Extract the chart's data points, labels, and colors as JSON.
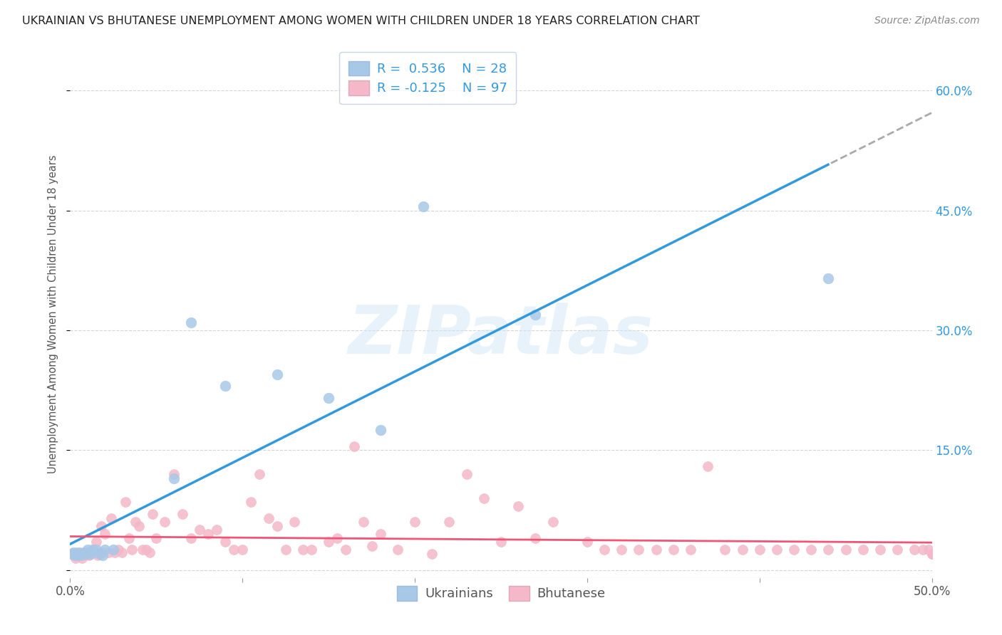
{
  "title": "UKRAINIAN VS BHUTANESE UNEMPLOYMENT AMONG WOMEN WITH CHILDREN UNDER 18 YEARS CORRELATION CHART",
  "source": "Source: ZipAtlas.com",
  "ylabel": "Unemployment Among Women with Children Under 18 years",
  "xlim": [
    0.0,
    0.5
  ],
  "ylim": [
    -0.01,
    0.65
  ],
  "background_color": "#ffffff",
  "grid_color": "#d0d0d0",
  "ukrainian_color": "#a8c8e8",
  "bhutanese_color": "#f4b8c8",
  "line_blue": "#3399dd",
  "line_pink": "#ee5577",
  "line_dashed_color": "#aaaaaa",
  "R_ukrainian": 0.536,
  "N_ukrainian": 28,
  "R_bhutanese": -0.125,
  "N_bhutanese": 97,
  "legend_label_ukrainian": "Ukrainians",
  "legend_label_bhutanese": "Bhutanese",
  "watermark": "ZIPatlas",
  "ukrainian_x": [
    0.001,
    0.002,
    0.003,
    0.004,
    0.005,
    0.006,
    0.007,
    0.008,
    0.009,
    0.01,
    0.011,
    0.012,
    0.013,
    0.015,
    0.017,
    0.018,
    0.019,
    0.02,
    0.025,
    0.06,
    0.07,
    0.09,
    0.12,
    0.15,
    0.18,
    0.205,
    0.27,
    0.44
  ],
  "ukrainian_y": [
    0.02,
    0.022,
    0.018,
    0.02,
    0.022,
    0.018,
    0.02,
    0.022,
    0.02,
    0.025,
    0.022,
    0.02,
    0.025,
    0.025,
    0.02,
    0.022,
    0.018,
    0.025,
    0.025,
    0.115,
    0.31,
    0.23,
    0.245,
    0.215,
    0.175,
    0.455,
    0.32,
    0.365
  ],
  "bhutanese_x": [
    0.001,
    0.002,
    0.003,
    0.004,
    0.005,
    0.006,
    0.007,
    0.008,
    0.009,
    0.01,
    0.011,
    0.012,
    0.013,
    0.014,
    0.015,
    0.016,
    0.017,
    0.018,
    0.019,
    0.02,
    0.022,
    0.024,
    0.026,
    0.028,
    0.03,
    0.032,
    0.034,
    0.036,
    0.038,
    0.04,
    0.042,
    0.044,
    0.046,
    0.048,
    0.05,
    0.055,
    0.06,
    0.065,
    0.07,
    0.075,
    0.08,
    0.085,
    0.09,
    0.095,
    0.1,
    0.105,
    0.11,
    0.115,
    0.12,
    0.125,
    0.13,
    0.135,
    0.14,
    0.15,
    0.155,
    0.16,
    0.165,
    0.17,
    0.175,
    0.18,
    0.19,
    0.2,
    0.21,
    0.22,
    0.23,
    0.24,
    0.25,
    0.26,
    0.27,
    0.28,
    0.3,
    0.31,
    0.32,
    0.33,
    0.34,
    0.35,
    0.36,
    0.37,
    0.38,
    0.39,
    0.4,
    0.41,
    0.42,
    0.43,
    0.44,
    0.45,
    0.46,
    0.47,
    0.48,
    0.49,
    0.495,
    0.498,
    0.5,
    0.5,
    0.5,
    0.5,
    0.5
  ],
  "bhutanese_y": [
    0.02,
    0.018,
    0.015,
    0.022,
    0.018,
    0.02,
    0.015,
    0.022,
    0.018,
    0.02,
    0.018,
    0.02,
    0.025,
    0.022,
    0.035,
    0.018,
    0.02,
    0.055,
    0.022,
    0.045,
    0.022,
    0.065,
    0.022,
    0.025,
    0.022,
    0.085,
    0.04,
    0.025,
    0.06,
    0.055,
    0.025,
    0.025,
    0.022,
    0.07,
    0.04,
    0.06,
    0.12,
    0.07,
    0.04,
    0.05,
    0.045,
    0.05,
    0.035,
    0.025,
    0.025,
    0.085,
    0.12,
    0.065,
    0.055,
    0.025,
    0.06,
    0.025,
    0.025,
    0.035,
    0.04,
    0.025,
    0.155,
    0.06,
    0.03,
    0.045,
    0.025,
    0.06,
    0.02,
    0.06,
    0.12,
    0.09,
    0.035,
    0.08,
    0.04,
    0.06,
    0.035,
    0.025,
    0.025,
    0.025,
    0.025,
    0.025,
    0.025,
    0.13,
    0.025,
    0.025,
    0.025,
    0.025,
    0.025,
    0.025,
    0.025,
    0.025,
    0.025,
    0.025,
    0.025,
    0.025,
    0.025,
    0.025,
    0.02,
    0.02,
    0.02,
    0.02,
    0.02
  ]
}
